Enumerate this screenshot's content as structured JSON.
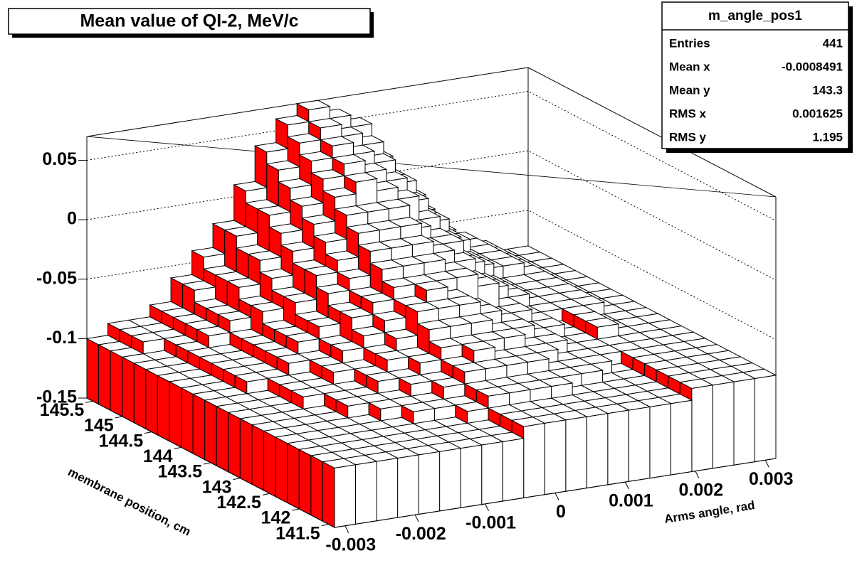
{
  "chart_data": {
    "type": "lego",
    "title": "Mean value of QI-2, MeV/c",
    "xlabel": "Arms angle, rad",
    "ylabel": "membrane position, cm",
    "stats": {
      "title": "m_angle_pos1",
      "rows": [
        [
          "Entries",
          "441"
        ],
        [
          "Mean x",
          "-0.0008491"
        ],
        [
          "Mean y",
          "143.3"
        ],
        [
          "RMS x",
          "0.001625"
        ],
        [
          "RMS y",
          "1.195"
        ]
      ]
    },
    "xlim": [
      -0.00315,
      0.00315
    ],
    "ylim": [
      141.4,
      145.6
    ],
    "zlim": [
      -0.15,
      0.07
    ],
    "xticks": [
      -0.003,
      -0.002,
      -0.001,
      0,
      0.001,
      0.002,
      0.003
    ],
    "yticks": [
      141.5,
      142,
      142.5,
      143,
      143.5,
      144,
      144.5,
      145,
      145.5
    ],
    "zticks": [
      -0.15,
      -0.1,
      -0.05,
      0,
      0.05
    ],
    "side_color": "#ff0000",
    "top_color": "#ffffff",
    "values": [
      [
        -0.1,
        -0.1,
        -0.1,
        -0.1,
        -0.1,
        -0.1,
        -0.1,
        -0.1,
        -0.1,
        -0.09,
        -0.09,
        -0.09,
        -0.09,
        -0.09,
        -0.09,
        -0.09,
        -0.09,
        -0.08,
        -0.08,
        -0.08,
        -0.08
      ],
      [
        -0.1,
        -0.1,
        -0.1,
        -0.1,
        -0.1,
        -0.1,
        -0.1,
        -0.1,
        -0.1,
        -0.09,
        -0.09,
        -0.09,
        -0.09,
        -0.09,
        -0.09,
        -0.09,
        -0.09,
        -0.08,
        -0.08,
        -0.08,
        -0.08
      ],
      [
        -0.1,
        -0.1,
        -0.1,
        -0.1,
        -0.1,
        -0.1,
        -0.1,
        -0.1,
        -0.1,
        -0.09,
        -0.09,
        -0.09,
        -0.09,
        -0.09,
        -0.09,
        -0.09,
        -0.09,
        -0.08,
        -0.08,
        -0.08,
        -0.08
      ],
      [
        -0.1,
        -0.1,
        -0.1,
        -0.1,
        -0.1,
        -0.1,
        -0.1,
        -0.1,
        -0.09,
        -0.08,
        -0.08,
        -0.08,
        -0.08,
        -0.09,
        -0.09,
        -0.09,
        -0.09,
        -0.08,
        -0.08,
        -0.08,
        -0.08
      ],
      [
        -0.1,
        -0.1,
        -0.1,
        -0.1,
        -0.1,
        -0.1,
        -0.09,
        -0.09,
        -0.09,
        -0.08,
        -0.08,
        -0.08,
        -0.08,
        -0.08,
        -0.08,
        -0.09,
        -0.09,
        -0.08,
        -0.08,
        -0.08,
        -0.08
      ],
      [
        -0.1,
        -0.1,
        -0.1,
        -0.1,
        -0.1,
        -0.09,
        -0.09,
        -0.09,
        -0.08,
        -0.07,
        -0.07,
        -0.07,
        -0.07,
        -0.08,
        -0.08,
        -0.08,
        -0.09,
        -0.08,
        -0.08,
        -0.08,
        -0.08
      ],
      [
        -0.1,
        -0.1,
        -0.1,
        -0.1,
        -0.09,
        -0.09,
        -0.09,
        -0.08,
        -0.08,
        -0.07,
        -0.06,
        -0.07,
        -0.07,
        -0.07,
        -0.08,
        -0.08,
        -0.08,
        -0.08,
        -0.08,
        -0.08,
        -0.08
      ],
      [
        -0.1,
        -0.1,
        -0.1,
        -0.1,
        -0.09,
        -0.09,
        -0.08,
        -0.08,
        -0.07,
        -0.06,
        -0.06,
        -0.06,
        -0.06,
        -0.07,
        -0.07,
        -0.08,
        -0.08,
        -0.08,
        -0.08,
        -0.08,
        -0.08
      ],
      [
        -0.1,
        -0.1,
        -0.1,
        -0.09,
        -0.09,
        -0.09,
        -0.08,
        -0.07,
        -0.07,
        -0.05,
        -0.05,
        -0.05,
        -0.06,
        -0.06,
        -0.07,
        -0.08,
        -0.08,
        -0.07,
        -0.08,
        -0.08,
        -0.08
      ],
      [
        -0.1,
        -0.1,
        -0.1,
        -0.09,
        -0.09,
        -0.08,
        -0.08,
        -0.07,
        -0.06,
        -0.04,
        -0.04,
        -0.04,
        -0.05,
        -0.06,
        -0.07,
        -0.07,
        -0.08,
        -0.07,
        -0.08,
        -0.08,
        -0.08
      ],
      [
        -0.1,
        -0.1,
        -0.1,
        -0.09,
        -0.09,
        -0.08,
        -0.07,
        -0.06,
        -0.05,
        -0.04,
        -0.03,
        -0.04,
        -0.05,
        -0.06,
        -0.06,
        -0.07,
        -0.08,
        -0.07,
        -0.08,
        -0.08,
        -0.08
      ],
      [
        -0.1,
        -0.1,
        -0.09,
        -0.09,
        -0.08,
        -0.08,
        -0.07,
        -0.05,
        -0.04,
        -0.03,
        -0.03,
        -0.03,
        -0.03,
        -0.04,
        -0.06,
        -0.07,
        -0.07,
        -0.07,
        -0.07,
        -0.08,
        -0.08
      ],
      [
        -0.1,
        -0.1,
        -0.09,
        -0.09,
        -0.08,
        -0.07,
        -0.06,
        -0.05,
        -0.04,
        -0.02,
        -0.02,
        -0.02,
        -0.03,
        -0.04,
        -0.05,
        -0.06,
        -0.07,
        -0.07,
        -0.07,
        -0.08,
        -0.08
      ],
      [
        -0.1,
        -0.1,
        -0.09,
        -0.09,
        -0.08,
        -0.07,
        -0.06,
        -0.04,
        -0.03,
        -0.01,
        -0.01,
        -0.01,
        -0.02,
        -0.03,
        -0.05,
        -0.06,
        -0.07,
        -0.07,
        -0.07,
        -0.08,
        -0.08
      ],
      [
        -0.1,
        -0.1,
        -0.09,
        -0.09,
        -0.08,
        -0.07,
        -0.05,
        -0.03,
        -0.02,
        0.0,
        0.0,
        0.0,
        -0.02,
        -0.02,
        -0.04,
        -0.06,
        -0.07,
        -0.07,
        -0.07,
        -0.08,
        -0.08
      ],
      [
        -0.1,
        -0.1,
        -0.09,
        -0.09,
        -0.08,
        -0.06,
        -0.05,
        -0.03,
        -0.01,
        0.01,
        0.01,
        0.01,
        -0.01,
        -0.02,
        -0.04,
        -0.05,
        -0.07,
        -0.07,
        -0.07,
        -0.08,
        -0.08
      ],
      [
        -0.1,
        -0.1,
        -0.09,
        -0.08,
        -0.07,
        -0.06,
        -0.04,
        -0.02,
        0.0,
        0.02,
        0.03,
        0.02,
        0.01,
        -0.01,
        -0.03,
        -0.05,
        -0.06,
        -0.06,
        -0.07,
        -0.08,
        -0.08
      ],
      [
        -0.1,
        -0.1,
        -0.09,
        -0.08,
        -0.07,
        -0.05,
        -0.03,
        -0.01,
        0.01,
        0.03,
        0.04,
        0.03,
        0.02,
        0.0,
        -0.02,
        -0.04,
        -0.06,
        -0.06,
        -0.07,
        -0.08,
        -0.08
      ],
      [
        -0.1,
        -0.09,
        -0.09,
        -0.08,
        -0.07,
        -0.05,
        -0.03,
        0.0,
        0.02,
        0.04,
        0.05,
        0.04,
        0.03,
        0.01,
        -0.02,
        -0.04,
        -0.06,
        -0.06,
        -0.07,
        -0.08,
        -0.08
      ],
      [
        -0.1,
        -0.09,
        -0.09,
        -0.08,
        -0.06,
        -0.05,
        -0.02,
        0.0,
        0.03,
        0.05,
        0.06,
        0.05,
        0.04,
        0.01,
        -0.01,
        -0.04,
        -0.06,
        -0.06,
        -0.07,
        -0.08,
        -0.08
      ],
      [
        -0.1,
        -0.09,
        -0.09,
        -0.08,
        -0.06,
        -0.04,
        -0.02,
        0.01,
        0.04,
        0.06,
        0.07,
        0.06,
        0.05,
        0.02,
        -0.01,
        -0.03,
        -0.05,
        -0.06,
        -0.07,
        -0.08,
        -0.08
      ]
    ]
  }
}
